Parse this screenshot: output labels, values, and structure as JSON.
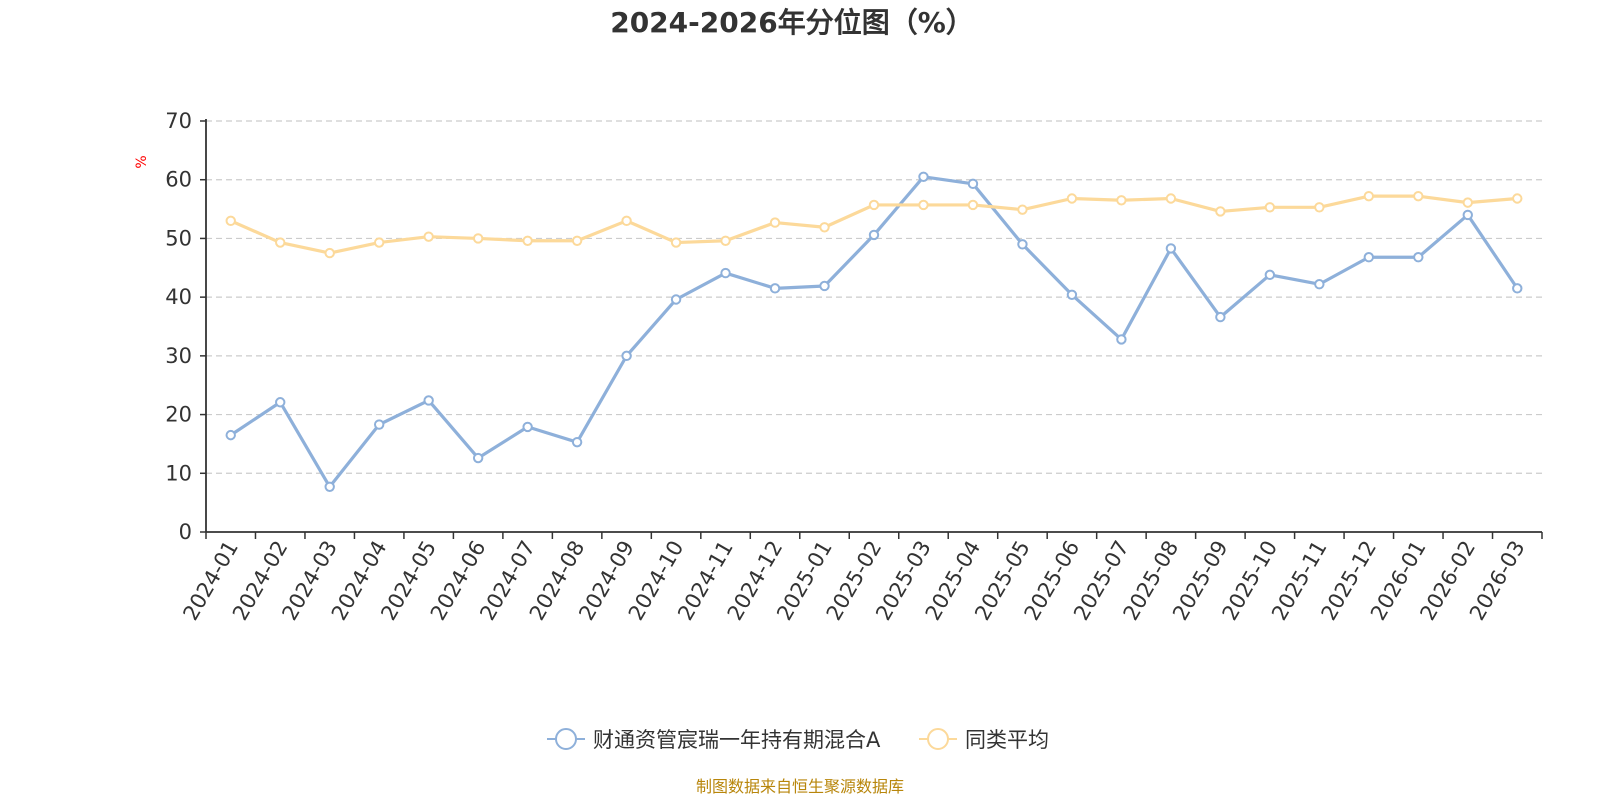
{
  "chart_data": {
    "type": "line",
    "title": "2024-2026年分位图（%）",
    "ylabel": "%",
    "xlabel": "",
    "ylim": [
      0,
      70
    ],
    "y_ticks": [
      0,
      10,
      20,
      30,
      40,
      50,
      60,
      70
    ],
    "grid": "horizontal dashed",
    "legend_position": "bottom",
    "categories": [
      "2024-01",
      "2024-02",
      "2024-03",
      "2024-04",
      "2024-05",
      "2024-06",
      "2024-07",
      "2024-08",
      "2024-09",
      "2024-10",
      "2024-11",
      "2024-12",
      "2025-01",
      "2025-02",
      "2025-03",
      "2025-04",
      "2025-05",
      "2025-06",
      "2025-07",
      "2025-08",
      "2025-09",
      "2025-10",
      "2025-11",
      "2025-12",
      "2026-01",
      "2026-02",
      "2026-03"
    ],
    "series": [
      {
        "name": "财通资管宸瑞一年持有期混合A",
        "color": "#8eb0da",
        "values": [
          16.5,
          22.1,
          7.7,
          18.3,
          22.4,
          12.6,
          17.9,
          15.3,
          30.0,
          39.6,
          44.1,
          41.5,
          41.9,
          50.6,
          60.5,
          59.3,
          49.0,
          40.4,
          32.8,
          48.3,
          36.6,
          43.8,
          42.2,
          46.8,
          46.8,
          54.0,
          41.5
        ]
      },
      {
        "name": "同类平均",
        "color": "#fcd99a",
        "values": [
          53.0,
          49.3,
          47.5,
          49.3,
          50.3,
          50.0,
          49.6,
          49.6,
          53.0,
          49.3,
          49.6,
          52.7,
          51.9,
          55.7,
          55.7,
          55.7,
          54.9,
          56.8,
          56.5,
          56.8,
          54.6,
          55.3,
          55.3,
          57.2,
          57.2,
          56.1,
          56.8
        ]
      }
    ]
  },
  "source_note": "制图数据来自恒生聚源数据库"
}
